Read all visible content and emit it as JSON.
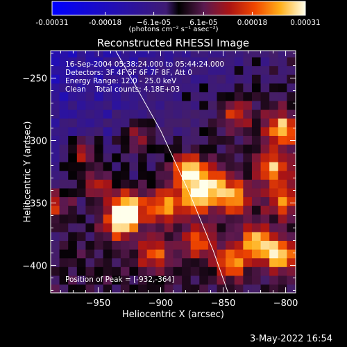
{
  "chart_data": {
    "type": "heatmap",
    "title": "Reconstructed RHESSI Image",
    "xlabel": "Heliocentric X (arcsec)",
    "ylabel": "Heliocentric Y (arcsec)",
    "xlim": [
      -988,
      -792
    ],
    "ylim": [
      -422,
      -228
    ],
    "x_ticks": [
      -950,
      -900,
      -850,
      -800
    ],
    "y_ticks": [
      -250,
      -300,
      -350,
      -400
    ],
    "x_tick_labels": [
      "−950",
      "−900",
      "−850",
      "−800"
    ],
    "y_tick_labels": [
      "−250",
      "−300",
      "−350",
      "−400"
    ],
    "colormap": "red-temperature with negative blue",
    "colorbar": {
      "range": [
        -0.00031,
        0.00031
      ],
      "tick_values": [
        -0.00031,
        -0.00018,
        -6.1e-05,
        6.1e-05,
        0.00018,
        0.00031
      ],
      "tick_labels": [
        "-0.00031",
        "-0.00018",
        "−6.1e-05",
        "6.1e-05",
        "0.00018",
        "0.00031"
      ],
      "unit_label": "(photons cm⁻² s⁻¹ asec⁻²)"
    },
    "info_lines": [
      "16-Sep-2004 05:38:24.000 to 05:44:24.000",
      "Detectors: 3F 4F 5F 6F 7F 8F, Att 0",
      "Energy Range: 12.0 - 25.0 keV",
      "Clean    Total counts: 4.18E+03"
    ],
    "peak_label": "Position of Peak = [-932,-364]",
    "peak_position": [
      -932,
      -364
    ],
    "hotspots": [
      {
        "x": -932,
        "y": -364,
        "intensity": 1.0
      },
      {
        "x": -925,
        "y": -353,
        "intensity": 0.8
      },
      {
        "x": -878,
        "y": -324,
        "intensity": 0.95
      },
      {
        "x": -871,
        "y": -345,
        "intensity": 0.85
      },
      {
        "x": -857,
        "y": -335,
        "intensity": 0.7
      },
      {
        "x": -841,
        "y": -346,
        "intensity": 0.72
      },
      {
        "x": -803,
        "y": -291,
        "intensity": 0.85
      },
      {
        "x": -810,
        "y": -322,
        "intensity": 0.75
      },
      {
        "x": -802,
        "y": -348,
        "intensity": 0.6
      },
      {
        "x": -805,
        "y": -392,
        "intensity": 0.9
      },
      {
        "x": -823,
        "y": -381,
        "intensity": 0.8
      },
      {
        "x": -843,
        "y": -397,
        "intensity": 0.7
      },
      {
        "x": -897,
        "y": -352,
        "intensity": 0.75
      },
      {
        "x": -950,
        "y": -335,
        "intensity": 0.55
      },
      {
        "x": -963,
        "y": -308,
        "intensity": 0.5
      },
      {
        "x": -905,
        "y": -390,
        "intensity": 0.6
      },
      {
        "x": -918,
        "y": -296,
        "intensity": 0.45
      },
      {
        "x": -870,
        "y": -380,
        "intensity": 0.6
      },
      {
        "x": -840,
        "y": -278,
        "intensity": 0.5
      },
      {
        "x": -985,
        "y": -352,
        "intensity": 0.55
      }
    ],
    "limb_curve": [
      [
        -936,
        -228
      ],
      [
        -900,
        -292
      ],
      [
        -877,
        -342
      ],
      [
        -858,
        -388
      ],
      [
        -846,
        -422
      ]
    ],
    "grid": false
  },
  "timestamp": "3-May-2022 16:54"
}
